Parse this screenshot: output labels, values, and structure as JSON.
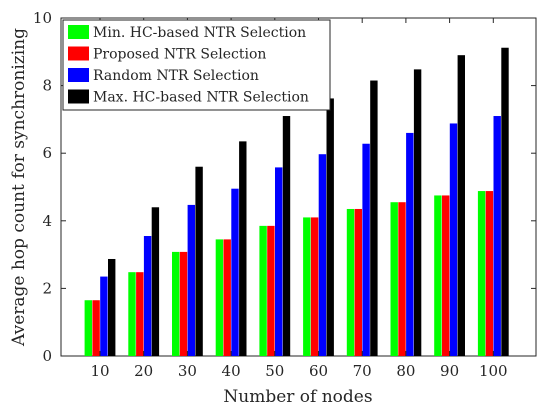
{
  "chart_data": {
    "type": "bar",
    "title": "",
    "xlabel": "Number of nodes",
    "ylabel": "Average hop count for synchronizing",
    "categories": [
      "10",
      "20",
      "30",
      "40",
      "50",
      "60",
      "70",
      "80",
      "90",
      "100"
    ],
    "x_tick_labels": [
      "10",
      "20",
      "30",
      "40",
      "50",
      "60",
      "70",
      "80",
      "90",
      "100"
    ],
    "y_tick_labels": [
      "0",
      "2",
      "4",
      "6",
      "8",
      "10"
    ],
    "y_ticks": [
      0,
      2,
      4,
      6,
      8,
      10
    ],
    "ylim": [
      0,
      10
    ],
    "grid": false,
    "legend_position": "top-left",
    "series": [
      {
        "name": "Min. HC-based NTR Selection",
        "color": "#00ff00",
        "values": [
          1.65,
          2.48,
          3.08,
          3.45,
          3.85,
          4.1,
          4.35,
          4.55,
          4.75,
          4.88
        ]
      },
      {
        "name": "Proposed NTR Selection",
        "color": "#ff0000",
        "values": [
          1.65,
          2.48,
          3.08,
          3.45,
          3.85,
          4.1,
          4.35,
          4.55,
          4.75,
          4.88
        ]
      },
      {
        "name": "Random NTR Selection",
        "color": "#0000ff",
        "values": [
          2.35,
          3.55,
          4.47,
          4.95,
          5.58,
          5.97,
          6.28,
          6.6,
          6.88,
          7.1
        ]
      },
      {
        "name": "Max. HC-based NTR Selection",
        "color": "#000000",
        "values": [
          2.87,
          4.4,
          5.6,
          6.35,
          7.1,
          7.62,
          8.15,
          8.48,
          8.9,
          9.12
        ]
      }
    ]
  }
}
